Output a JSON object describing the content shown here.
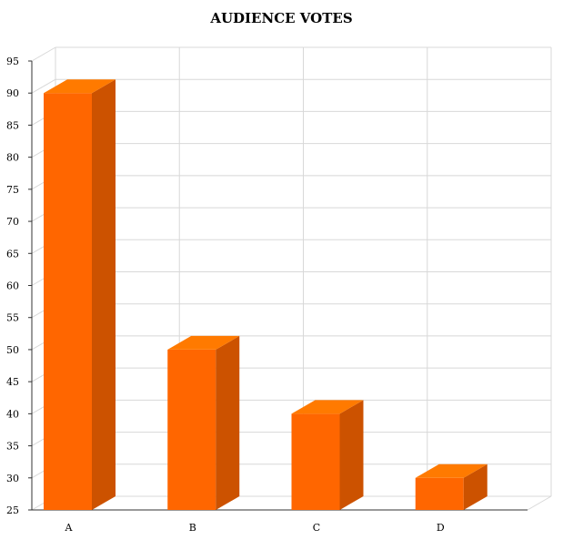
{
  "chart_data": {
    "type": "bar",
    "title": "AUDIENCE VOTES",
    "categories": [
      "A",
      "B",
      "C",
      "D"
    ],
    "values": [
      90,
      50,
      40,
      30
    ],
    "xlabel": "",
    "ylabel": "",
    "ylim": [
      25,
      95
    ],
    "yticks": [
      25,
      30,
      35,
      40,
      45,
      50,
      55,
      60,
      65,
      70,
      75,
      80,
      85,
      90,
      95
    ],
    "grid": true,
    "legend": "none",
    "bar_color": "#ff6600",
    "bar_side_color": "#cc5200",
    "bar_top_color": "#ff7a00",
    "three_d": true
  }
}
